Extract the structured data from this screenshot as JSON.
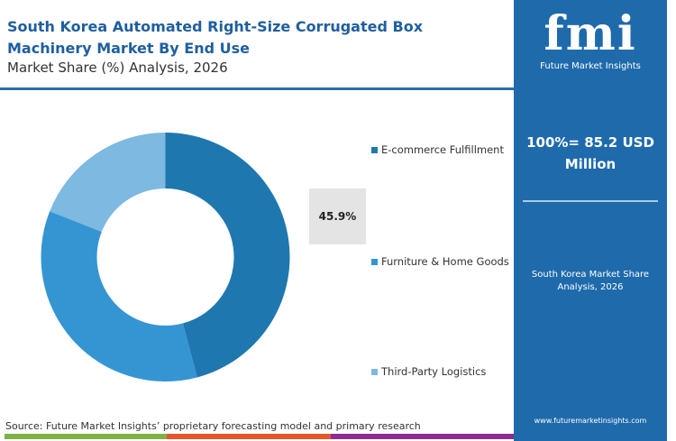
{
  "header": {
    "title": "South Korea Automated Right-Size Corrugated Box Machinery Market By End Use",
    "subtitle": "Market Share (%) Analysis, 2026"
  },
  "panel": {
    "logo_text": "fmi",
    "logo_name": "Future Market Insights",
    "total": "100%= 85.2 USD Million",
    "caption": "South Korea Market Share Analysis, 2026",
    "url": "www.futuremarketinsights.com",
    "color": "#1e6aab"
  },
  "footer": {
    "source": "Source: Future Market Insights’ proprietary forecasting model and primary research",
    "bar_colors": [
      "#7cb342",
      "#e8572a",
      "#8e2c8f"
    ]
  },
  "chart_data": {
    "type": "pie",
    "donut": true,
    "categories": [
      "E-commerce Fulfillment",
      "Furniture & Home Goods",
      "Third-Party Logistics"
    ],
    "values": [
      45.9,
      35.1,
      19.0
    ],
    "colors": [
      "#1f77b0",
      "#3595d3",
      "#7db9e0"
    ],
    "data_labels": [
      "45.9%"
    ],
    "legend_placement": "right"
  }
}
